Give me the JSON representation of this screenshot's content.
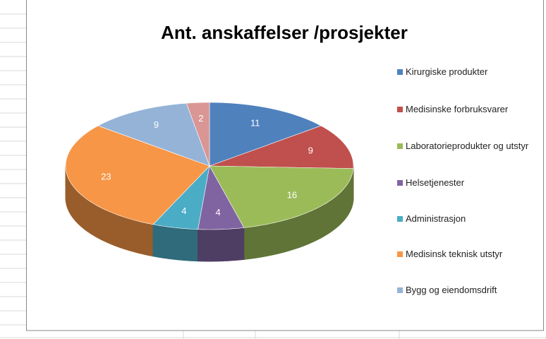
{
  "chart_data": {
    "type": "pie3d",
    "title": "Ant. anskaffelser /prosjekter",
    "categories": [
      "Kirurgiske produkter",
      "Medisinske forbruksvarer",
      "Laboratorieprodukter og utstyr",
      "Helsetjenester",
      "Administrasjon",
      "Medisinsk teknisk utstyr",
      "Bygg og eiendomsdrift",
      null
    ],
    "values": [
      11,
      9,
      16,
      4,
      4,
      23,
      9,
      2
    ],
    "colors": [
      "#4f81bd",
      "#c0504d",
      "#9bbb59",
      "#8064a2",
      "#4bacc6",
      "#f79646",
      "#95b3d7",
      "#d99694"
    ],
    "legend": "right"
  }
}
